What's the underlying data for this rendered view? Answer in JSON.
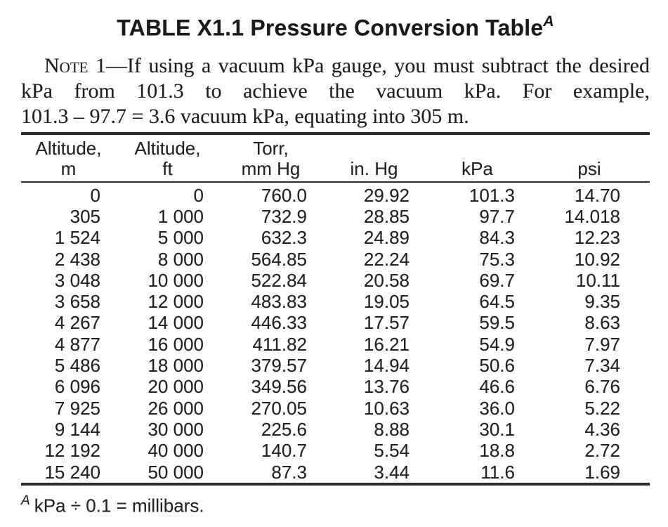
{
  "title": {
    "text": "TABLE X1.1 Pressure Conversion Table",
    "footnote_ref": "A"
  },
  "note": {
    "label": "Note 1",
    "lines": [
      "—If using a vacuum kPa gauge, you must subtract the desired",
      "kPa from 101.3 to achieve the vacuum kPa. For example,",
      "101.3 – 97.7 = 3.6 vacuum kPa, equating into 305 m."
    ]
  },
  "table": {
    "columns": [
      {
        "key": "altitude-m",
        "label_lines": [
          "Altitude,",
          "m"
        ]
      },
      {
        "key": "altitude-ft",
        "label_lines": [
          "Altitude,",
          "ft"
        ]
      },
      {
        "key": "torr-mm-hg",
        "label_lines": [
          "Torr,",
          "mm Hg"
        ]
      },
      {
        "key": "in-hg",
        "label_lines": [
          "in. Hg"
        ]
      },
      {
        "key": "kpa",
        "label_lines": [
          "kPa"
        ]
      },
      {
        "key": "psi",
        "label_lines": [
          "psi"
        ]
      }
    ],
    "rows": [
      [
        "0",
        "0",
        "760.0",
        "29.92",
        "101.3",
        "14.70"
      ],
      [
        "305",
        "1 000",
        "732.9",
        "28.85",
        "97.7",
        "14.018"
      ],
      [
        "1 524",
        "5 000",
        "632.3",
        "24.89",
        "84.3",
        "12.23"
      ],
      [
        "2 438",
        "8 000",
        "564.85",
        "22.24",
        "75.3",
        "10.92"
      ],
      [
        "3 048",
        "10 000",
        "522.84",
        "20.58",
        "69.7",
        "10.11"
      ],
      [
        "3 658",
        "12 000",
        "483.83",
        "19.05",
        "64.5",
        "9.35"
      ],
      [
        "4 267",
        "14 000",
        "446.33",
        "17.57",
        "59.5",
        "8.63"
      ],
      [
        "4 877",
        "16 000",
        "411.82",
        "16.21",
        "54.9",
        "7.97"
      ],
      [
        "5 486",
        "18 000",
        "379.57",
        "14.94",
        "50.6",
        "7.34"
      ],
      [
        "6 096",
        "20 000",
        "349.56",
        "13.76",
        "46.6",
        "6.76"
      ],
      [
        "7 925",
        "26 000",
        "270.05",
        "10.63",
        "36.0",
        "5.22"
      ],
      [
        "9 144",
        "30 000",
        "225.6",
        "8.88",
        "30.1",
        "4.36"
      ],
      [
        "12 192",
        "40 000",
        "140.7",
        "5.54",
        "18.8",
        "2.72"
      ],
      [
        "15 240",
        "50 000",
        "87.3",
        "3.44",
        "11.6",
        "1.69"
      ]
    ]
  },
  "footnote": {
    "ref": "A",
    "text": "kPa ÷ 0.1 = millibars."
  },
  "colors": {
    "background": "#ffffff",
    "text": "#1c1c1c",
    "rule": "#2b2b2b"
  }
}
